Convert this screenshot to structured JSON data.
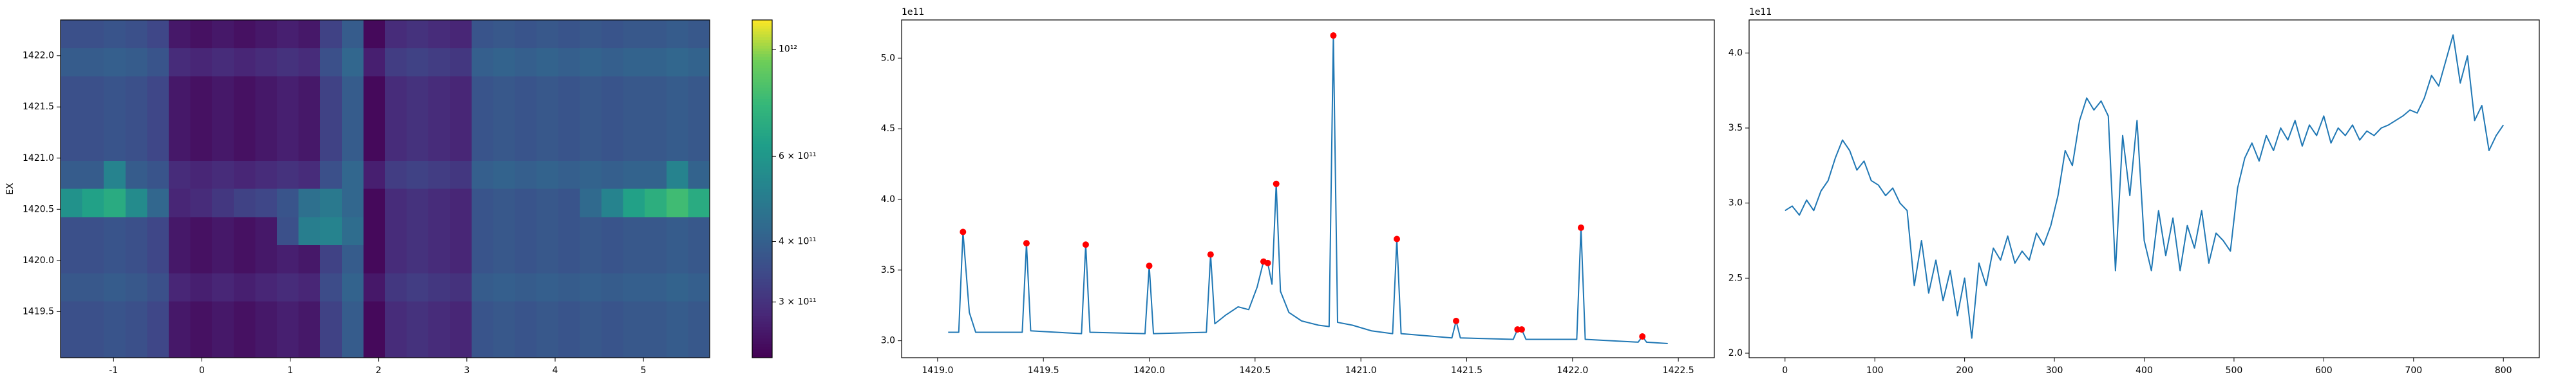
{
  "chart_data": [
    {
      "type": "heatmap",
      "ylabel": "EX",
      "colormap": "viridis",
      "xlim": [
        -1.6,
        5.75
      ],
      "ylim": [
        1419.05,
        1422.35
      ],
      "xticks": [
        -1,
        0,
        1,
        2,
        3,
        4,
        5
      ],
      "yticks": [
        1419.5,
        {
          "value": 1420,
          "label": "1420.0"
        },
        1420.5,
        {
          "value": 1421,
          "label": "1421.0"
        },
        1421.5,
        {
          "value": 1422,
          "label": "1422.0"
        }
      ],
      "values": [
        [
          360000000000.0,
          360000000000.0,
          370000000000.0,
          360000000000.0,
          340000000000.0,
          260000000000.0,
          250000000000.0,
          260000000000.0,
          250000000000.0,
          260000000000.0,
          270000000000.0,
          260000000000.0,
          330000000000.0,
          390000000000.0,
          240000000000.0,
          290000000000.0,
          300000000000.0,
          290000000000.0,
          280000000000.0,
          370000000000.0,
          380000000000.0,
          370000000000.0,
          380000000000.0,
          370000000000.0,
          380000000000.0,
          370000000000.0,
          380000000000.0,
          380000000000.0,
          390000000000.0,
          380000000000.0
        ],
        [
          390000000000.0,
          390000000000.0,
          400000000000.0,
          390000000000.0,
          370000000000.0,
          290000000000.0,
          280000000000.0,
          290000000000.0,
          280000000000.0,
          290000000000.0,
          300000000000.0,
          290000000000.0,
          360000000000.0,
          420000000000.0,
          270000000000.0,
          320000000000.0,
          330000000000.0,
          320000000000.0,
          310000000000.0,
          400000000000.0,
          410000000000.0,
          400000000000.0,
          410000000000.0,
          400000000000.0,
          410000000000.0,
          400000000000.0,
          410000000000.0,
          410000000000.0,
          420000000000.0,
          410000000000.0
        ],
        [
          360000000000.0,
          360000000000.0,
          370000000000.0,
          360000000000.0,
          340000000000.0,
          260000000000.0,
          250000000000.0,
          260000000000.0,
          250000000000.0,
          260000000000.0,
          270000000000.0,
          260000000000.0,
          330000000000.0,
          390000000000.0,
          240000000000.0,
          290000000000.0,
          300000000000.0,
          290000000000.0,
          280000000000.0,
          370000000000.0,
          380000000000.0,
          370000000000.0,
          380000000000.0,
          370000000000.0,
          380000000000.0,
          370000000000.0,
          380000000000.0,
          380000000000.0,
          390000000000.0,
          380000000000.0
        ],
        [
          360000000000.0,
          360000000000.0,
          370000000000.0,
          360000000000.0,
          340000000000.0,
          260000000000.0,
          250000000000.0,
          260000000000.0,
          250000000000.0,
          260000000000.0,
          270000000000.0,
          260000000000.0,
          330000000000.0,
          390000000000.0,
          240000000000.0,
          290000000000.0,
          300000000000.0,
          290000000000.0,
          280000000000.0,
          370000000000.0,
          380000000000.0,
          370000000000.0,
          380000000000.0,
          370000000000.0,
          380000000000.0,
          370000000000.0,
          380000000000.0,
          380000000000.0,
          390000000000.0,
          380000000000.0
        ],
        [
          360000000000.0,
          360000000000.0,
          370000000000.0,
          360000000000.0,
          340000000000.0,
          260000000000.0,
          250000000000.0,
          260000000000.0,
          250000000000.0,
          260000000000.0,
          270000000000.0,
          260000000000.0,
          330000000000.0,
          390000000000.0,
          240000000000.0,
          290000000000.0,
          300000000000.0,
          290000000000.0,
          280000000000.0,
          370000000000.0,
          380000000000.0,
          370000000000.0,
          380000000000.0,
          370000000000.0,
          380000000000.0,
          370000000000.0,
          380000000000.0,
          380000000000.0,
          390000000000.0,
          380000000000.0
        ],
        [
          390000000000.0,
          390000000000.0,
          520000000000.0,
          390000000000.0,
          370000000000.0,
          290000000000.0,
          280000000000.0,
          290000000000.0,
          280000000000.0,
          290000000000.0,
          300000000000.0,
          290000000000.0,
          360000000000.0,
          420000000000.0,
          270000000000.0,
          320000000000.0,
          330000000000.0,
          320000000000.0,
          310000000000.0,
          400000000000.0,
          410000000000.0,
          400000000000.0,
          410000000000.0,
          400000000000.0,
          410000000000.0,
          400000000000.0,
          410000000000.0,
          410000000000.0,
          520000000000.0,
          410000000000.0
        ],
        [
          580000000000.0,
          650000000000.0,
          700000000000.0,
          550000000000.0,
          420000000000.0,
          280000000000.0,
          290000000000.0,
          310000000000.0,
          330000000000.0,
          340000000000.0,
          370000000000.0,
          450000000000.0,
          480000000000.0,
          420000000000.0,
          240000000000.0,
          290000000000.0,
          300000000000.0,
          290000000000.0,
          280000000000.0,
          370000000000.0,
          380000000000.0,
          370000000000.0,
          380000000000.0,
          370000000000.0,
          430000000000.0,
          520000000000.0,
          650000000000.0,
          720000000000.0,
          800000000000.0,
          700000000000.0
        ],
        [
          360000000000.0,
          360000000000.0,
          370000000000.0,
          360000000000.0,
          340000000000.0,
          260000000000.0,
          250000000000.0,
          260000000000.0,
          250000000000.0,
          260000000000.0,
          360000000000.0,
          500000000000.0,
          520000000000.0,
          440000000000.0,
          240000000000.0,
          290000000000.0,
          300000000000.0,
          290000000000.0,
          280000000000.0,
          370000000000.0,
          380000000000.0,
          370000000000.0,
          380000000000.0,
          370000000000.0,
          380000000000.0,
          370000000000.0,
          380000000000.0,
          380000000000.0,
          390000000000.0,
          380000000000.0
        ],
        [
          360000000000.0,
          360000000000.0,
          370000000000.0,
          360000000000.0,
          340000000000.0,
          260000000000.0,
          250000000000.0,
          260000000000.0,
          250000000000.0,
          260000000000.0,
          270000000000.0,
          260000000000.0,
          330000000000.0,
          390000000000.0,
          240000000000.0,
          290000000000.0,
          300000000000.0,
          290000000000.0,
          280000000000.0,
          370000000000.0,
          380000000000.0,
          370000000000.0,
          380000000000.0,
          370000000000.0,
          380000000000.0,
          370000000000.0,
          380000000000.0,
          380000000000.0,
          390000000000.0,
          380000000000.0
        ],
        [
          380000000000.0,
          380000000000.0,
          390000000000.0,
          380000000000.0,
          360000000000.0,
          280000000000.0,
          270000000000.0,
          280000000000.0,
          270000000000.0,
          280000000000.0,
          290000000000.0,
          280000000000.0,
          350000000000.0,
          410000000000.0,
          260000000000.0,
          310000000000.0,
          320000000000.0,
          310000000000.0,
          300000000000.0,
          390000000000.0,
          400000000000.0,
          390000000000.0,
          400000000000.0,
          390000000000.0,
          400000000000.0,
          390000000000.0,
          400000000000.0,
          400000000000.0,
          410000000000.0,
          400000000000.0
        ],
        [
          360000000000.0,
          360000000000.0,
          370000000000.0,
          360000000000.0,
          340000000000.0,
          260000000000.0,
          250000000000.0,
          260000000000.0,
          250000000000.0,
          260000000000.0,
          270000000000.0,
          260000000000.0,
          330000000000.0,
          390000000000.0,
          240000000000.0,
          290000000000.0,
          300000000000.0,
          290000000000.0,
          280000000000.0,
          370000000000.0,
          380000000000.0,
          370000000000.0,
          380000000000.0,
          370000000000.0,
          380000000000.0,
          370000000000.0,
          380000000000.0,
          380000000000.0,
          390000000000.0,
          380000000000.0
        ],
        [
          360000000000.0,
          360000000000.0,
          370000000000.0,
          360000000000.0,
          340000000000.0,
          260000000000.0,
          250000000000.0,
          260000000000.0,
          250000000000.0,
          260000000000.0,
          270000000000.0,
          260000000000.0,
          330000000000.0,
          390000000000.0,
          240000000000.0,
          290000000000.0,
          300000000000.0,
          290000000000.0,
          280000000000.0,
          370000000000.0,
          380000000000.0,
          370000000000.0,
          380000000000.0,
          370000000000.0,
          380000000000.0,
          370000000000.0,
          380000000000.0,
          380000000000.0,
          390000000000.0,
          380000000000.0
        ]
      ],
      "colorbar": {
        "scale": "log",
        "lim": [
          230000000000.0,
          1150000000000.0
        ],
        "ticks": [
          {
            "value": 300000000000.0,
            "label": "3 × 10¹¹"
          },
          {
            "value": 400000000000.0,
            "label": "4 × 10¹¹"
          },
          {
            "value": 600000000000.0,
            "label": "6 × 10¹¹"
          },
          {
            "value": 1000000000000.0,
            "label": "10¹²"
          }
        ]
      }
    },
    {
      "type": "line",
      "offset_text": "1e11",
      "xlim": [
        1418.83,
        1422.67
      ],
      "ylim": [
        2.88,
        5.27
      ],
      "xticks": [
        {
          "value": 1419,
          "label": "1419.0"
        },
        1419.5,
        {
          "value": 1420,
          "label": "1420.0"
        },
        1420.5,
        {
          "value": 1421,
          "label": "1421.0"
        },
        1421.5,
        {
          "value": 1422,
          "label": "1422.0"
        },
        1422.5
      ],
      "yticks": [
        {
          "value": 3,
          "label": "3.0"
        },
        3.5,
        {
          "value": 4,
          "label": "4.0"
        },
        4.5,
        {
          "value": 5,
          "label": "5.0"
        }
      ],
      "series": [
        {
          "color": "#1f77b4",
          "x": [
            1419.05,
            1419.1,
            1419.12,
            1419.15,
            1419.18,
            1419.4,
            1419.42,
            1419.44,
            1419.68,
            1419.7,
            1419.72,
            1419.98,
            1420.0,
            1420.02,
            1420.27,
            1420.29,
            1420.31,
            1420.36,
            1420.42,
            1420.47,
            1420.51,
            1420.54,
            1420.56,
            1420.58,
            1420.6,
            1420.62,
            1420.66,
            1420.72,
            1420.8,
            1420.85,
            1420.87,
            1420.89,
            1420.96,
            1421.05,
            1421.15,
            1421.17,
            1421.19,
            1421.43,
            1421.45,
            1421.47,
            1421.72,
            1421.74,
            1421.76,
            1421.78,
            1422.02,
            1422.04,
            1422.06,
            1422.31,
            1422.33,
            1422.35,
            1422.45
          ],
          "values": [
            3.06,
            3.06,
            3.77,
            3.2,
            3.06,
            3.06,
            3.69,
            3.07,
            3.05,
            3.68,
            3.06,
            3.05,
            3.53,
            3.05,
            3.06,
            3.61,
            3.12,
            3.18,
            3.24,
            3.22,
            3.38,
            3.56,
            3.55,
            3.4,
            4.11,
            3.35,
            3.2,
            3.14,
            3.11,
            3.1,
            5.16,
            3.13,
            3.11,
            3.07,
            3.05,
            3.72,
            3.05,
            3.02,
            3.14,
            3.02,
            3.01,
            3.08,
            3.08,
            3.01,
            3.01,
            3.8,
            3.01,
            2.99,
            3.03,
            2.99,
            2.98
          ]
        },
        {
          "color": "#ff0000",
          "marker": "o",
          "x": [
            1419.12,
            1419.42,
            1419.7,
            1420.0,
            1420.29,
            1420.54,
            1420.56,
            1420.6,
            1420.87,
            1421.17,
            1421.45,
            1421.74,
            1421.76,
            1422.04,
            1422.33
          ],
          "values": [
            3.77,
            3.69,
            3.68,
            3.53,
            3.61,
            3.56,
            3.55,
            4.11,
            5.16,
            3.72,
            3.14,
            3.08,
            3.08,
            3.8,
            3.03
          ]
        }
      ]
    },
    {
      "type": "line",
      "offset_text": "1e11",
      "xlim": [
        -40,
        840
      ],
      "ylim": [
        1.97,
        4.22
      ],
      "xticks": [
        0,
        100,
        200,
        300,
        400,
        500,
        600,
        700,
        800
      ],
      "yticks": [
        {
          "value": 2,
          "label": "2.0"
        },
        2.5,
        {
          "value": 3,
          "label": "3.0"
        },
        3.5,
        {
          "value": 4,
          "label": "4.0"
        }
      ],
      "series": [
        {
          "color": "#1f77b4",
          "x": [
            0,
            8,
            16,
            24,
            32,
            40,
            48,
            56,
            64,
            72,
            80,
            88,
            96,
            104,
            112,
            120,
            128,
            136,
            144,
            152,
            160,
            168,
            176,
            184,
            192,
            200,
            208,
            216,
            224,
            232,
            240,
            248,
            256,
            264,
            272,
            280,
            288,
            296,
            304,
            312,
            320,
            328,
            336,
            344,
            352,
            360,
            368,
            376,
            384,
            392,
            400,
            408,
            416,
            424,
            432,
            440,
            448,
            456,
            464,
            472,
            480,
            488,
            496,
            504,
            512,
            520,
            528,
            536,
            544,
            552,
            560,
            568,
            576,
            584,
            592,
            600,
            608,
            616,
            624,
            632,
            640,
            648,
            656,
            664,
            672,
            680,
            688,
            696,
            704,
            712,
            720,
            728,
            736,
            744,
            752,
            760,
            768,
            776,
            784,
            792,
            800
          ],
          "values": [
            2.95,
            2.98,
            2.92,
            3.02,
            2.95,
            3.08,
            3.15,
            3.3,
            3.42,
            3.35,
            3.22,
            3.28,
            3.15,
            3.12,
            3.05,
            3.1,
            3.0,
            2.95,
            2.45,
            2.75,
            2.4,
            2.62,
            2.35,
            2.55,
            2.25,
            2.5,
            2.1,
            2.6,
            2.45,
            2.7,
            2.62,
            2.78,
            2.6,
            2.68,
            2.62,
            2.8,
            2.72,
            2.85,
            3.05,
            3.35,
            3.25,
            3.55,
            3.7,
            3.62,
            3.68,
            3.58,
            2.55,
            3.45,
            3.05,
            3.55,
            2.75,
            2.55,
            2.95,
            2.65,
            2.9,
            2.55,
            2.85,
            2.7,
            2.95,
            2.6,
            2.8,
            2.75,
            2.68,
            3.1,
            3.3,
            3.4,
            3.28,
            3.45,
            3.35,
            3.5,
            3.42,
            3.55,
            3.38,
            3.52,
            3.45,
            3.58,
            3.4,
            3.5,
            3.45,
            3.52,
            3.42,
            3.48,
            3.45,
            3.5,
            3.52,
            3.55,
            3.58,
            3.62,
            3.6,
            3.7,
            3.85,
            3.78,
            3.95,
            4.12,
            3.8,
            3.98,
            3.55,
            3.65,
            3.35,
            3.45,
            3.52
          ]
        }
      ]
    }
  ]
}
